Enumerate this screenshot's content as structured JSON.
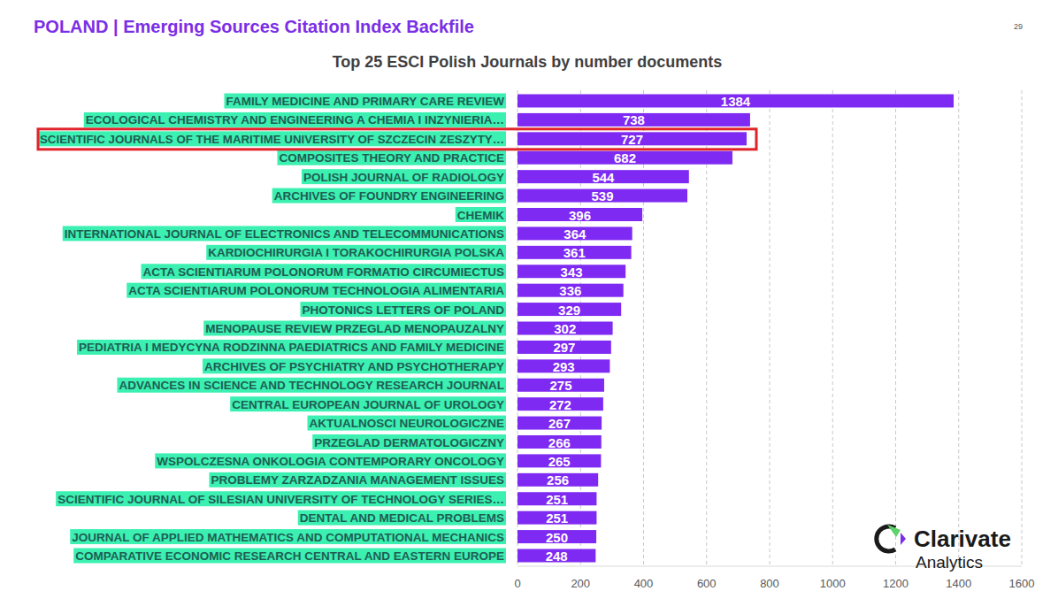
{
  "page": {
    "header": "POLAND | Emerging Sources Citation Index Backfile",
    "page_number": "29",
    "logo": {
      "name": "Clarivate",
      "subtitle": "Analytics"
    }
  },
  "chart_data": {
    "type": "bar",
    "orientation": "horizontal",
    "title": "Top 25 ESCI Polish Journals by number documents",
    "categories": [
      "FAMILY MEDICINE AND PRIMARY CARE REVIEW",
      "ECOLOGICAL CHEMISTRY AND ENGINEERING A CHEMIA I INZYNIERIA…",
      "SCIENTIFIC JOURNALS OF THE MARITIME UNIVERSITY OF SZCZECIN ZESZYTY…",
      "COMPOSITES THEORY AND PRACTICE",
      "POLISH JOURNAL OF RADIOLOGY",
      "ARCHIVES OF FOUNDRY ENGINEERING",
      "CHEMIK",
      "INTERNATIONAL JOURNAL OF ELECTRONICS AND TELECOMMUNICATIONS",
      "KARDIOCHIRURGIA I TORAKOCHIRURGIA POLSKA",
      "ACTA SCIENTIARUM POLONORUM FORMATIO CIRCUMIECTUS",
      "ACTA SCIENTIARUM POLONORUM TECHNOLOGIA ALIMENTARIA",
      "PHOTONICS LETTERS OF POLAND",
      "MENOPAUSE REVIEW PRZEGLAD MENOPAUZALNY",
      "PEDIATRIA I MEDYCYNA RODZINNA PAEDIATRICS AND FAMILY MEDICINE",
      "ARCHIVES OF PSYCHIATRY AND PSYCHOTHERAPY",
      "ADVANCES IN SCIENCE AND TECHNOLOGY RESEARCH JOURNAL",
      "CENTRAL EUROPEAN JOURNAL OF UROLOGY",
      "AKTUALNOSCI NEUROLOGICZNE",
      "PRZEGLAD DERMATOLOGICZNY",
      "WSPOLCZESNA ONKOLOGIA CONTEMPORARY ONCOLOGY",
      "PROBLEMY ZARZADZANIA MANAGEMENT ISSUES",
      "SCIENTIFIC JOURNAL OF SILESIAN UNIVERSITY OF TECHNOLOGY SERIES…",
      "DENTAL AND MEDICAL PROBLEMS",
      "JOURNAL OF APPLIED MATHEMATICS AND COMPUTATIONAL MECHANICS",
      "COMPARATIVE ECONOMIC RESEARCH CENTRAL AND EASTERN EUROPE"
    ],
    "values": [
      1384,
      738,
      727,
      682,
      544,
      539,
      396,
      364,
      361,
      343,
      336,
      329,
      302,
      297,
      293,
      275,
      272,
      267,
      266,
      265,
      256,
      251,
      251,
      250,
      248
    ],
    "color": "#7f2af2",
    "xlim": [
      0,
      1600
    ],
    "xticks": [
      0,
      200,
      400,
      600,
      800,
      1000,
      1200,
      1400,
      1600
    ],
    "grid": true,
    "data_labels": true
  }
}
